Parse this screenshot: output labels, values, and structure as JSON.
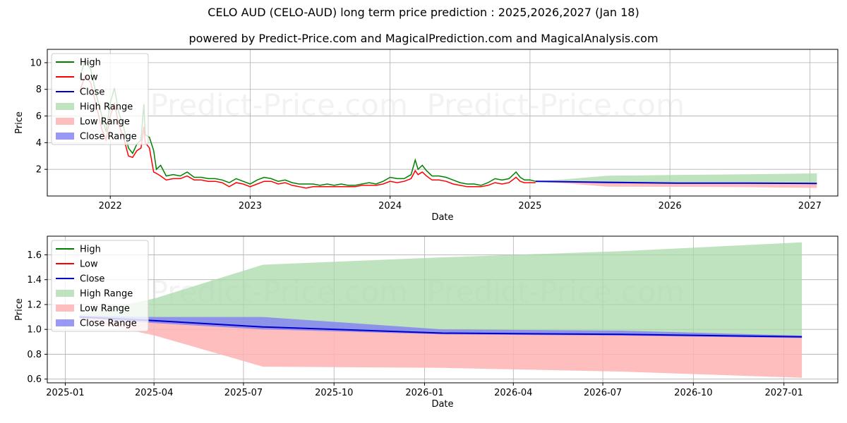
{
  "header": {
    "title": "CELO AUD (CELO-AUD) long term price prediction : 2025,2026,2027 (Jan 18)",
    "subtitle": "powered by Predict-Price.com and MagicalPrediction.com and MagicalAnalysis.com"
  },
  "watermark": "Predict-Price.com",
  "colors": {
    "high": "#008000",
    "low": "#ff0000",
    "close": "#0000cc",
    "high_range": "#a9d8a9",
    "low_range": "#ffb3b3",
    "close_range": "#7f7ff2",
    "grid": "#b0b0b0"
  },
  "chart_data": [
    {
      "type": "line",
      "title": "",
      "xlabel": "Date",
      "ylabel": "Price",
      "xlim": [
        2021.55,
        2027.2
      ],
      "ylim": [
        0,
        11
      ],
      "xticks": [
        2022,
        2023,
        2024,
        2025,
        2026,
        2027
      ],
      "xtick_labels": [
        "2022",
        "2023",
        "2024",
        "2025",
        "2026",
        "2027"
      ],
      "yticks": [
        2,
        4,
        6,
        8,
        10
      ],
      "ytick_labels": [
        "2",
        "4",
        "6",
        "8",
        "10"
      ],
      "grid": true,
      "legend_position": "top-left",
      "legend": [
        "High",
        "Low",
        "Close",
        "High Range",
        "Low Range",
        "Close Range"
      ],
      "history": {
        "x": [
          2021.78,
          2021.82,
          2021.86,
          2021.9,
          2021.94,
          2021.97,
          2022.0,
          2022.03,
          2022.06,
          2022.1,
          2022.13,
          2022.16,
          2022.19,
          2022.22,
          2022.24,
          2022.25,
          2022.28,
          2022.31,
          2022.33,
          2022.36,
          2022.4,
          2022.45,
          2022.5,
          2022.55,
          2022.6,
          2022.65,
          2022.7,
          2022.75,
          2022.8,
          2022.85,
          2022.9,
          2022.95,
          2023.0,
          2023.05,
          2023.1,
          2023.15,
          2023.2,
          2023.25,
          2023.3,
          2023.35,
          2023.4,
          2023.45,
          2023.5,
          2023.55,
          2023.6,
          2023.65,
          2023.7,
          2023.75,
          2023.8,
          2023.85,
          2023.9,
          2023.95,
          2024.0,
          2024.05,
          2024.1,
          2024.15,
          2024.18,
          2024.2,
          2024.23,
          2024.26,
          2024.3,
          2024.35,
          2024.4,
          2024.45,
          2024.5,
          2024.55,
          2024.6,
          2024.65,
          2024.7,
          2024.75,
          2024.8,
          2024.85,
          2024.9,
          2024.93,
          2024.96,
          2025.0,
          2025.04
        ],
        "high": [
          8.8,
          10.2,
          9.5,
          7.6,
          6.0,
          4.8,
          7.0,
          8.1,
          6.3,
          5.0,
          3.6,
          3.2,
          3.9,
          4.2,
          6.9,
          4.6,
          4.4,
          3.4,
          2.0,
          2.3,
          1.5,
          1.6,
          1.5,
          1.8,
          1.4,
          1.4,
          1.3,
          1.3,
          1.2,
          1.0,
          1.3,
          1.1,
          0.9,
          1.2,
          1.4,
          1.3,
          1.1,
          1.2,
          1.0,
          0.9,
          0.9,
          0.9,
          0.8,
          0.9,
          0.8,
          0.9,
          0.8,
          0.8,
          0.9,
          1.0,
          0.9,
          1.1,
          1.4,
          1.3,
          1.3,
          1.6,
          2.7,
          2.0,
          2.3,
          1.9,
          1.5,
          1.5,
          1.4,
          1.2,
          1.0,
          0.9,
          0.9,
          0.8,
          1.0,
          1.3,
          1.2,
          1.3,
          1.8,
          1.4,
          1.2,
          1.2,
          1.1
        ],
        "low": [
          7.8,
          9.0,
          8.5,
          6.8,
          5.0,
          4.2,
          6.0,
          6.9,
          5.4,
          4.2,
          3.0,
          2.9,
          3.4,
          3.6,
          5.2,
          4.0,
          3.6,
          1.8,
          1.7,
          1.5,
          1.2,
          1.3,
          1.3,
          1.5,
          1.2,
          1.2,
          1.1,
          1.1,
          1.0,
          0.7,
          1.0,
          0.9,
          0.7,
          0.9,
          1.1,
          1.1,
          0.9,
          1.0,
          0.8,
          0.7,
          0.6,
          0.7,
          0.7,
          0.7,
          0.7,
          0.7,
          0.7,
          0.7,
          0.8,
          0.8,
          0.8,
          0.9,
          1.1,
          1.0,
          1.1,
          1.3,
          1.9,
          1.6,
          1.8,
          1.5,
          1.2,
          1.2,
          1.1,
          0.9,
          0.8,
          0.7,
          0.7,
          0.7,
          0.8,
          1.0,
          0.9,
          1.0,
          1.4,
          1.1,
          1.0,
          1.0,
          1.0
        ]
      },
      "forecast": {
        "x": [
          2025.04,
          2025.25,
          2025.55,
          2026.05,
          2026.55,
          2027.05
        ],
        "close": [
          1.1,
          1.07,
          1.02,
          0.97,
          0.96,
          0.94
        ],
        "high_upper": [
          1.12,
          1.25,
          1.52,
          1.58,
          1.63,
          1.7
        ],
        "low_lower": [
          1.08,
          0.95,
          0.7,
          0.69,
          0.66,
          0.61
        ],
        "close_upper": [
          1.11,
          1.1,
          1.1,
          1.0,
          0.99,
          0.95
        ],
        "close_lower": [
          1.09,
          1.05,
          1.0,
          0.96,
          0.95,
          0.93
        ]
      }
    },
    {
      "type": "area",
      "title": "",
      "xlabel": "Date",
      "ylabel": "Price",
      "xlim": [
        2024.95,
        2027.15
      ],
      "ylim": [
        0.57,
        1.75
      ],
      "xticks": [
        2025.0,
        2025.247,
        2025.496,
        2025.748,
        2026.0,
        2026.247,
        2026.496,
        2026.748,
        2027.0
      ],
      "xtick_labels": [
        "2025-01",
        "2025-04",
        "2025-07",
        "2025-10",
        "2026-01",
        "2026-04",
        "2026-07",
        "2026-10",
        "2027-01"
      ],
      "yticks": [
        0.6,
        0.8,
        1.0,
        1.2,
        1.4,
        1.6
      ],
      "ytick_labels": [
        "0.6",
        "0.8",
        "1.0",
        "1.2",
        "1.4",
        "1.6"
      ],
      "grid": true,
      "legend_position": "top-left",
      "legend": [
        "High",
        "Low",
        "Close",
        "High Range",
        "Low Range",
        "Close Range"
      ],
      "forecast": {
        "x": [
          2025.04,
          2025.25,
          2025.55,
          2026.05,
          2026.55,
          2027.05
        ],
        "close": [
          1.1,
          1.07,
          1.02,
          0.97,
          0.96,
          0.94
        ],
        "high_upper": [
          1.12,
          1.25,
          1.52,
          1.58,
          1.63,
          1.7
        ],
        "low_lower": [
          1.08,
          0.95,
          0.7,
          0.69,
          0.66,
          0.61
        ],
        "close_upper": [
          1.11,
          1.1,
          1.1,
          1.0,
          0.99,
          0.95
        ],
        "close_lower": [
          1.09,
          1.05,
          1.0,
          0.96,
          0.95,
          0.93
        ]
      }
    }
  ]
}
